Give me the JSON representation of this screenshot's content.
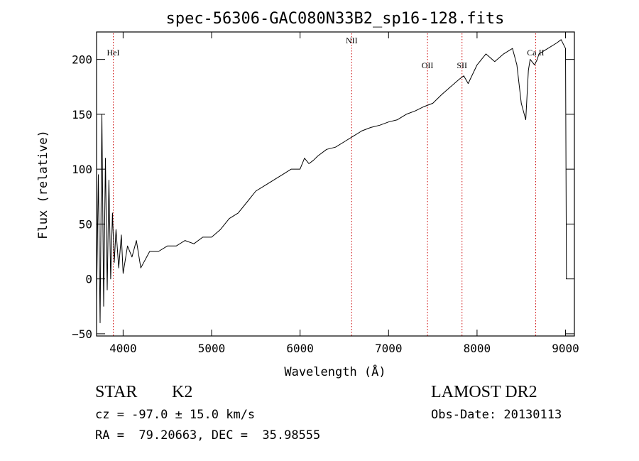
{
  "chart_data": {
    "type": "line",
    "title": "spec-56306-GAC080N33B2_sp16-128.fits",
    "xlabel": "Wavelength (Å)",
    "ylabel": "Flux (relative)",
    "xlim": [
      3700,
      9100
    ],
    "ylim": [
      -52,
      225
    ],
    "xticks": [
      4000,
      5000,
      6000,
      7000,
      8000,
      9000
    ],
    "yticks": [
      -50,
      0,
      50,
      100,
      150,
      200
    ],
    "grid": false,
    "series": [
      {
        "x": [
          3700,
          3720,
          3740,
          3760,
          3780,
          3800,
          3820,
          3840,
          3860,
          3880,
          3900,
          3920,
          3950,
          3980,
          4000,
          4050,
          4100,
          4150,
          4200,
          4300,
          4400,
          4500,
          4600,
          4700,
          4800,
          4900,
          5000,
          5100,
          5200,
          5300,
          5400,
          5500,
          5600,
          5700,
          5800,
          5900,
          6000,
          6050,
          6100,
          6150,
          6200,
          6300,
          6400,
          6500,
          6600,
          6700,
          6800,
          6900,
          7000,
          7100,
          7200,
          7300,
          7400,
          7500,
          7600,
          7700,
          7800,
          7850,
          7900,
          8000,
          8100,
          8200,
          8300,
          8400,
          8450,
          8500,
          8550,
          8580,
          8600,
          8650,
          8680,
          8700,
          8800,
          8900,
          8950,
          9000,
          9010
        ],
        "y": [
          -20,
          95,
          -40,
          150,
          -25,
          110,
          -10,
          90,
          0,
          60,
          15,
          45,
          10,
          40,
          5,
          30,
          20,
          35,
          10,
          25,
          25,
          30,
          30,
          35,
          32,
          38,
          38,
          45,
          55,
          60,
          70,
          80,
          85,
          90,
          95,
          100,
          100,
          110,
          105,
          108,
          112,
          118,
          120,
          125,
          130,
          135,
          138,
          140,
          143,
          145,
          150,
          153,
          157,
          160,
          168,
          175,
          182,
          185,
          178,
          195,
          205,
          198,
          205,
          210,
          195,
          160,
          145,
          190,
          200,
          195,
          200,
          205,
          210,
          215,
          218,
          210,
          0
        ],
        "style": {
          "color": "#000000"
        }
      }
    ],
    "lines": [
      {
        "x": 3889,
        "label": "HeI"
      },
      {
        "x": 6583,
        "label": "NII"
      },
      {
        "x": 7440,
        "label": "OII"
      },
      {
        "x": 7830,
        "label": "SII"
      },
      {
        "x": 8662,
        "label": "Ca II"
      }
    ],
    "line_color": "#cc0000"
  },
  "info": {
    "object_class": "STAR",
    "subclass": "K2",
    "survey": "LAMOST DR2",
    "redshift": "cz = -97.0 ± 15.0 km/s",
    "obs_date": "Obs-Date: 20130113",
    "coords": "RA =  79.20663, DEC =  35.98555"
  }
}
